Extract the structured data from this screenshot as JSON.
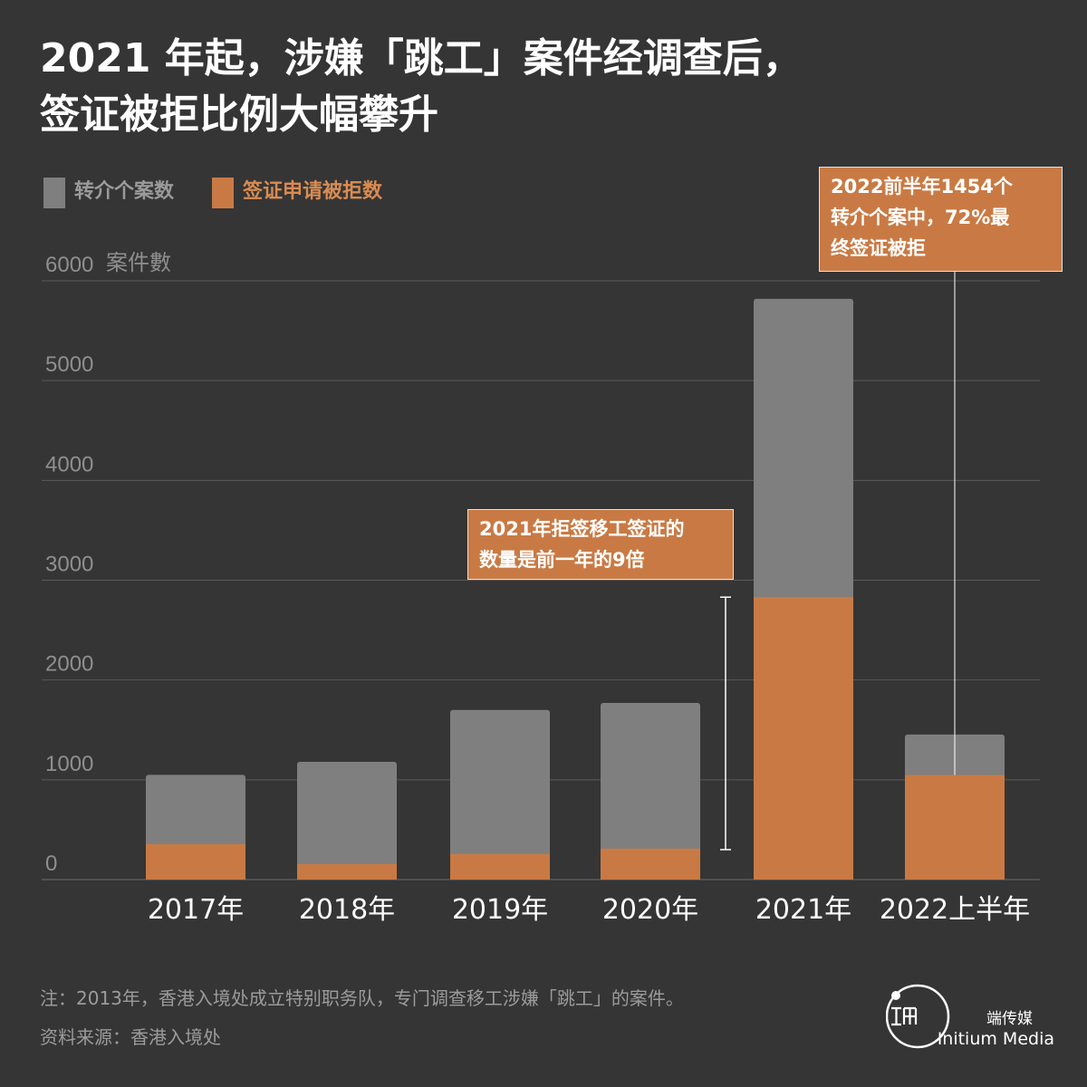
{
  "title": {
    "line1": "2021 年起，涉嫌「跳工」案件经调查后，",
    "line2": "签证被拒比例大幅攀升"
  },
  "colors": {
    "background": "#353535",
    "gray_bar": "#7f7f7f",
    "orange_bar": "#c97a44",
    "gridline": "#5a5a5a",
    "axis_text": "#8f8f8f",
    "white": "#ffffff",
    "legend_orange_text": "#d98b52",
    "legend_gray_text": "#9a9a9a"
  },
  "legend": {
    "referrals": "转介个案数",
    "rejected": "签证申请被拒数"
  },
  "annotations": {
    "y2021": [
      "2021年拒签移工签证的",
      "数量是前一年的9倍"
    ],
    "y2022": [
      "2022前半年1454个",
      "转介个案中，72%最",
      "终签证被拒"
    ]
  },
  "footer": {
    "note": "注：2013年，香港入境处成立特别职务队，专门调查移工涉嫌「跳工」的案件。",
    "source": "资料来源：香港入境处"
  },
  "brand": {
    "name_zh": "端传媒",
    "name_en": "Initium Media",
    "logo_icon": "initium-logo-icon"
  },
  "chart_data": {
    "type": "bar",
    "stacked": "overlay",
    "title": "2021 年起，涉嫌「跳工」案件经调查后，签证被拒比例大幅攀升",
    "ylabel": "案件數",
    "ylim": [
      0,
      6000
    ],
    "yticks": [
      0,
      1000,
      2000,
      3000,
      4000,
      5000,
      6000
    ],
    "categories": [
      "2017年",
      "2018年",
      "2019年",
      "2020年",
      "2021年",
      "2022上半年"
    ],
    "series": [
      {
        "name": "转介个案数",
        "color": "#7f7f7f",
        "values": [
          1050,
          1180,
          1700,
          1770,
          5820,
          1454
        ]
      },
      {
        "name": "签证申请被拒数",
        "color": "#c97a44",
        "values": [
          355,
          155,
          255,
          310,
          2830,
          1047
        ]
      }
    ],
    "bracket_range": [
      300,
      2830
    ],
    "grid": true
  }
}
